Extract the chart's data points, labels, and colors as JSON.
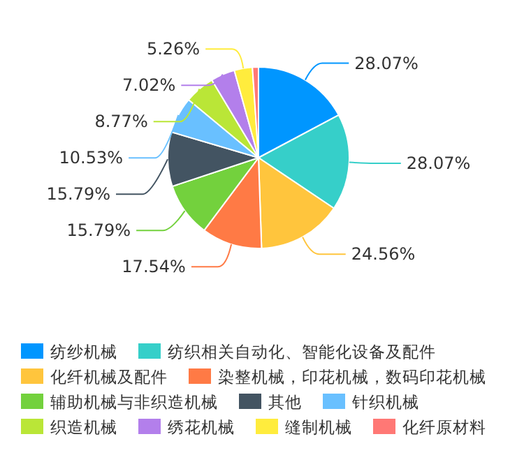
{
  "chart_data": {
    "type": "pie",
    "categories": [
      "纺纱机械",
      "纺织相关自动化、智能化设备及配件",
      "化纤机械及配件",
      "染整机械，印花机械，数码印花机械",
      "辅助机械与非织造机械",
      "其他",
      "针织机械",
      "织造机械",
      "绣花机械",
      "缝制机械",
      "化纤原材料"
    ],
    "values": [
      28.07,
      28.07,
      24.56,
      17.54,
      15.79,
      15.79,
      10.53,
      8.77,
      7.02,
      5.26,
      1.75
    ],
    "value_labels": [
      "28.07%",
      "28.07%",
      "24.56%",
      "17.54%",
      "15.79%",
      "15.79%",
      "10.53%",
      "8.77%",
      "7.02%",
      "5.26%",
      null
    ],
    "colors": [
      "#0096ff",
      "#36cfc9",
      "#ffc53d",
      "#ff7a45",
      "#73d13d",
      "#435462",
      "#69c0ff",
      "#bae637",
      "#b37feb",
      "#ffec3d",
      "#ff7875"
    ],
    "legend": "bottom"
  }
}
